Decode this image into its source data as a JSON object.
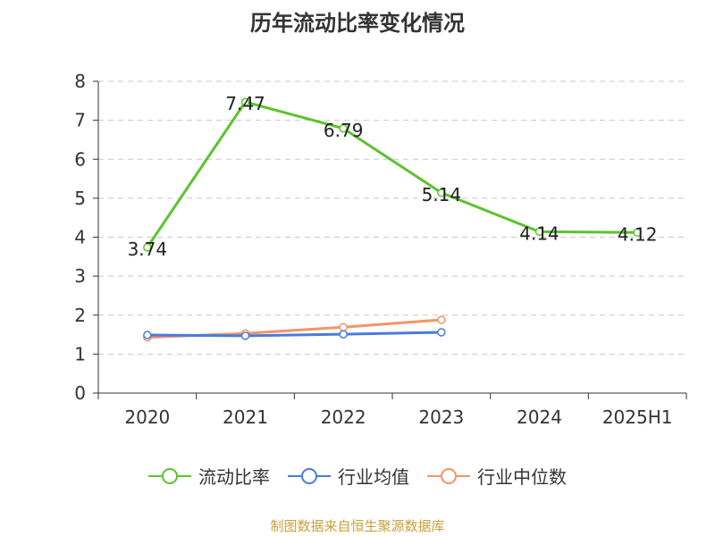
{
  "title": "历年流动比率变化情况",
  "source": "制图数据来自恒生聚源数据库",
  "colors": {
    "liquidity": "#5cc32e",
    "industry_avg": "#4a7bdc",
    "industry_median": "#f39466"
  },
  "chart_data": {
    "type": "line",
    "title": "历年流动比率变化情况",
    "categories": [
      "2020",
      "2021",
      "2022",
      "2023",
      "2024",
      "2025H1"
    ],
    "ylim": [
      0,
      8
    ],
    "yticks": [
      0,
      1,
      2,
      3,
      4,
      5,
      6,
      7,
      8
    ],
    "grid": true,
    "legend_position": "bottom",
    "series": [
      {
        "name": "流动比率",
        "values": [
          3.74,
          7.47,
          6.79,
          5.14,
          4.14,
          4.12
        ],
        "labels": [
          "3.74",
          "7.47",
          "6.79",
          "5.14",
          "4.14",
          "4.12"
        ]
      },
      {
        "name": "行业均值",
        "values": [
          1.49,
          1.47,
          1.51,
          1.56,
          null,
          null
        ]
      },
      {
        "name": "行业中位数",
        "values": [
          1.43,
          1.53,
          1.69,
          1.88,
          null,
          null
        ]
      }
    ]
  }
}
